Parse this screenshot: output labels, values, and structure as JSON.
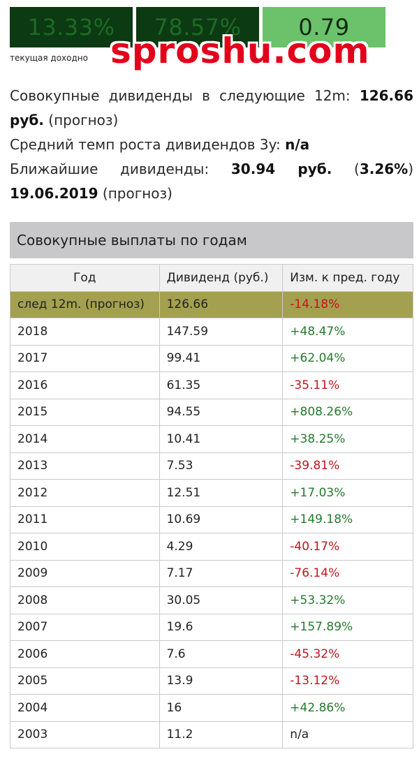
{
  "stats": [
    {
      "value": "13.33%",
      "label": "текущая доходно"
    },
    {
      "value": "78.57%",
      "label": ""
    },
    {
      "value": "0.79",
      "label": ""
    }
  ],
  "watermark": "sproshu.com",
  "info": {
    "total_label": "Совокупные дивиденды в следующие 12m:",
    "total_value": "126.66 руб.",
    "total_note": "(прогноз)",
    "growth_label": "Средний темп роста дивидендов 3y:",
    "growth_value": "n/a",
    "next_label": "Ближайшие дивиденды:",
    "next_amount": "30.94 руб.",
    "next_open": "(",
    "next_percent": "3.26%",
    "next_close": ")",
    "next_date": "19.06.2019",
    "next_note": "(прогноз)"
  },
  "panel_title": "Совокупные выплаты по годам",
  "table": {
    "headers": [
      "Год",
      "Дивиденд (руб.)",
      "Изм. к пред. году"
    ],
    "rows": [
      {
        "year": "след 12m. (прогноз)",
        "div": "126.66",
        "chg": "-14.18%",
        "dir": "neg",
        "hl": true
      },
      {
        "year": "2018",
        "div": "147.59",
        "chg": "+48.47%",
        "dir": "pos"
      },
      {
        "year": "2017",
        "div": "99.41",
        "chg": "+62.04%",
        "dir": "pos"
      },
      {
        "year": "2016",
        "div": "61.35",
        "chg": "-35.11%",
        "dir": "neg"
      },
      {
        "year": "2015",
        "div": "94.55",
        "chg": "+808.26%",
        "dir": "pos"
      },
      {
        "year": "2014",
        "div": "10.41",
        "chg": "+38.25%",
        "dir": "pos"
      },
      {
        "year": "2013",
        "div": "7.53",
        "chg": "-39.81%",
        "dir": "neg"
      },
      {
        "year": "2012",
        "div": "12.51",
        "chg": "+17.03%",
        "dir": "pos"
      },
      {
        "year": "2011",
        "div": "10.69",
        "chg": "+149.18%",
        "dir": "pos"
      },
      {
        "year": "2010",
        "div": "4.29",
        "chg": "-40.17%",
        "dir": "neg"
      },
      {
        "year": "2009",
        "div": "7.17",
        "chg": "-76.14%",
        "dir": "neg"
      },
      {
        "year": "2008",
        "div": "30.05",
        "chg": "+53.32%",
        "dir": "pos"
      },
      {
        "year": "2007",
        "div": "19.6",
        "chg": "+157.89%",
        "dir": "pos"
      },
      {
        "year": "2006",
        "div": "7.6",
        "chg": "-45.32%",
        "dir": "neg"
      },
      {
        "year": "2005",
        "div": "13.9",
        "chg": "-13.12%",
        "dir": "neg"
      },
      {
        "year": "2004",
        "div": "16",
        "chg": "+42.86%",
        "dir": "pos"
      },
      {
        "year": "2003",
        "div": "11.2",
        "chg": "n/a",
        "dir": "na"
      }
    ]
  },
  "colors": {
    "positive": "#247a2c",
    "negative": "#c2141b",
    "highlight": "#a3a050"
  }
}
